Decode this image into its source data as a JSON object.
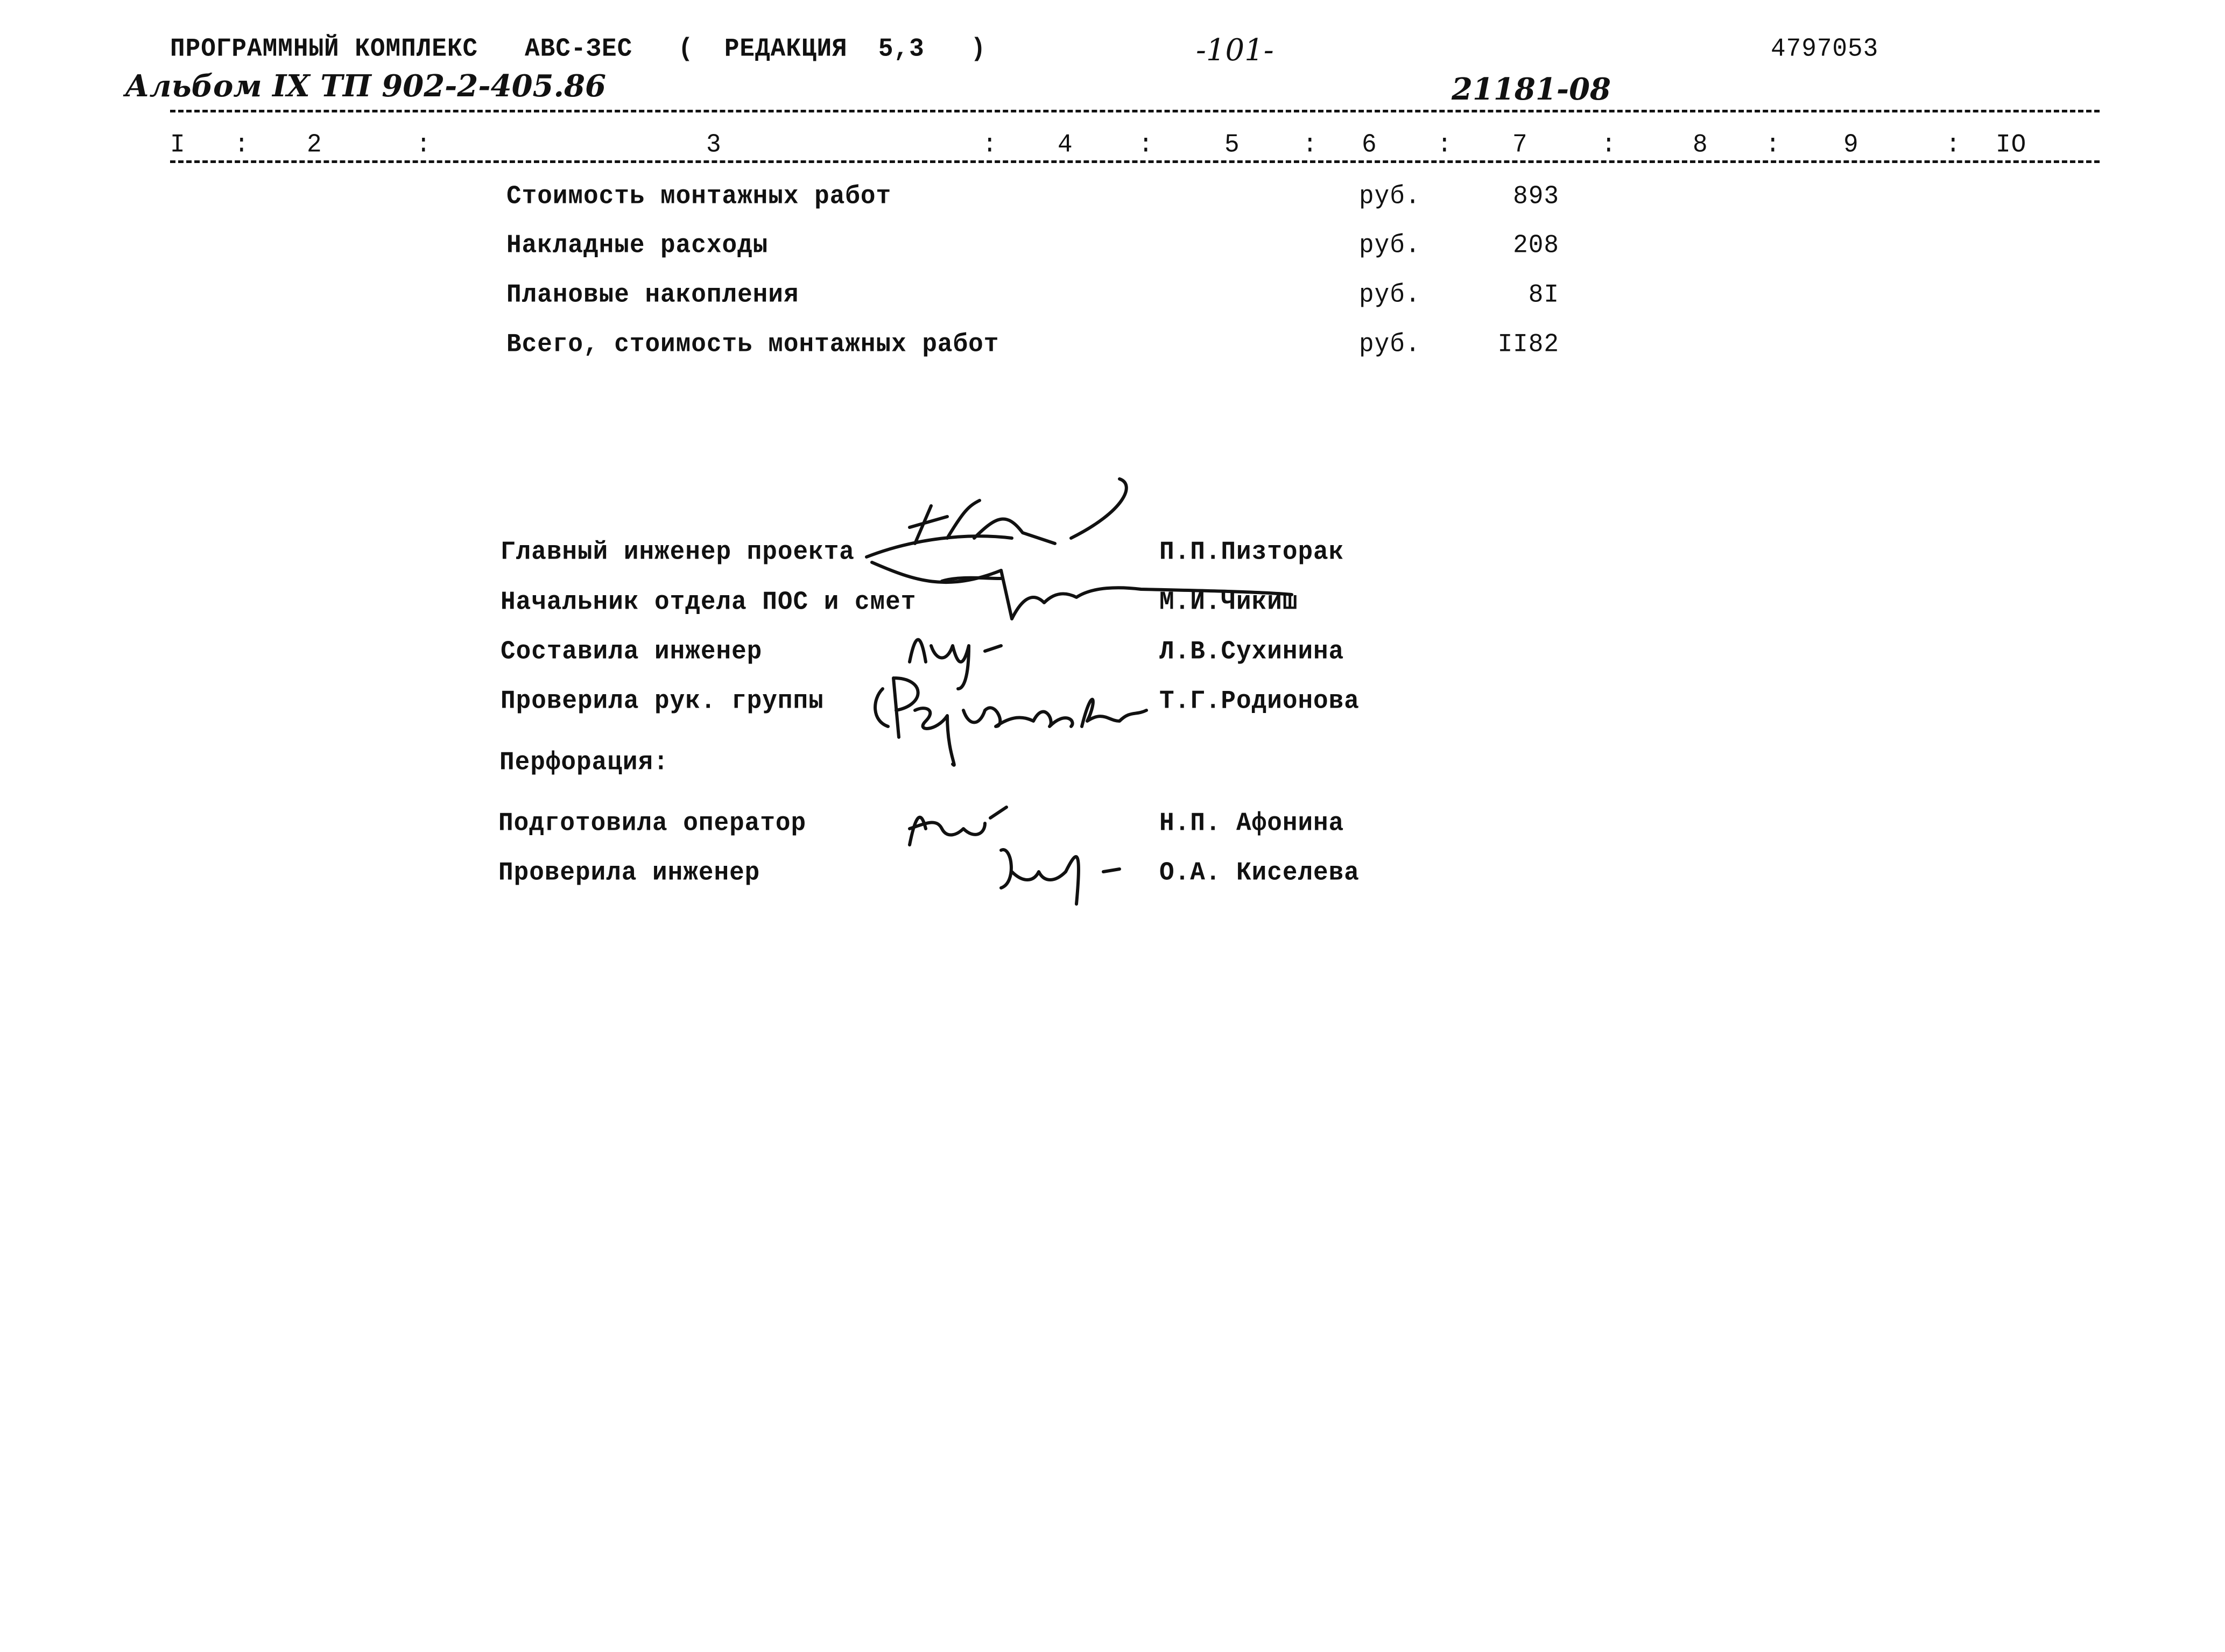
{
  "header": {
    "program": "ПРОГРАММНЫЙ КОМПЛЕКС",
    "system": "АВС-ЗЕС",
    "edition": "(  РЕДАКЦИЯ  5,3   )",
    "page": "-101-",
    "code": "4797053",
    "album": "Альбом IX ТП 902-2-405.86",
    "doc_number": "21181-08"
  },
  "columns": [
    "I",
    ":",
    "2",
    ":",
    "3",
    ":",
    "4",
    ":",
    "5",
    ":",
    "6",
    ":",
    "7",
    ":",
    "8",
    ":",
    "9",
    ":",
    "IO"
  ],
  "rows": [
    {
      "label": "Стоимость монтажных работ",
      "unit": "руб.",
      "value": "893"
    },
    {
      "label": "Накладные расходы",
      "unit": "руб.",
      "value": "208"
    },
    {
      "label": "Плановые накопления",
      "unit": "руб.",
      "value": "8I"
    },
    {
      "label": "Всего, стоимость монтажных работ",
      "unit": "руб.",
      "value": "II82"
    }
  ],
  "signatures": [
    {
      "role": "Главный инженер проекта",
      "name": "П.П.Пизторак"
    },
    {
      "role": "Начальник отдела ПОС и смет",
      "name": "М.И.Чикиш"
    },
    {
      "role": "Составила инженер",
      "name": "Л.В.Сухинина"
    },
    {
      "role": "Проверила рук. группы",
      "name": "Т.Г.Родионова"
    }
  ],
  "perforation_label": "Перфорация:",
  "perforation": [
    {
      "role": "Подготовила оператор",
      "name": "Н.П. Афонина"
    },
    {
      "role": "Проверила инженер",
      "name": "О.А. Киселева"
    }
  ]
}
